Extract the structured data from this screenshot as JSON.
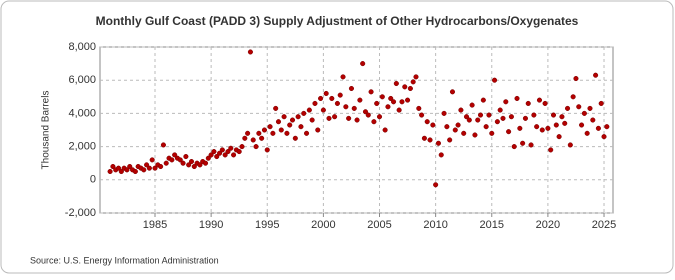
{
  "chart_data": {
    "type": "scatter",
    "title": "Monthly Gulf Coast (PADD 3) Supply Adjustment of Other Hydrocarbons/Oxygenates",
    "y_label": "Thousand Barrels",
    "source": "Source: U.S. Energy Information Administration",
    "xlim": [
      1980.1,
      2025.8
    ],
    "xticks": [
      1985,
      1990,
      1995,
      2000,
      2005,
      2010,
      2015,
      2020,
      2025
    ],
    "ylim": [
      -2000,
      8000
    ],
    "yticks": [
      {
        "value": -2000,
        "label": "-2,000"
      },
      0,
      {
        "value": 2000,
        "label": "2,000"
      },
      {
        "value": 4000,
        "label": "4,000"
      },
      {
        "value": 6000,
        "label": "6,000"
      },
      {
        "value": 8000,
        "label": "8,000"
      }
    ],
    "grid": true,
    "series": [
      {
        "color": "#b30000",
        "x": [
          1981,
          1981.25,
          1981.5,
          1981.75,
          1982,
          1982.25,
          1982.5,
          1982.75,
          1983,
          1983.25,
          1983.5,
          1983.75,
          1984,
          1984.25,
          1984.5,
          1984.75,
          1985,
          1985.25,
          1985.5,
          1985.75,
          1986,
          1986.25,
          1986.5,
          1986.75,
          1987,
          1987.25,
          1987.5,
          1987.75,
          1988,
          1988.25,
          1988.5,
          1988.75,
          1989,
          1989.25,
          1989.5,
          1989.75,
          1990,
          1990.25,
          1990.5,
          1990.75,
          1991,
          1991.25,
          1991.5,
          1991.75,
          1992,
          1992.25,
          1992.5,
          1992.75,
          1993,
          1993.25,
          1993.5,
          1993.75,
          1994,
          1994.25,
          1994.5,
          1994.75,
          1995,
          1995.25,
          1995.5,
          1995.75,
          1996,
          1996.25,
          1996.5,
          1996.75,
          1997,
          1997.25,
          1997.5,
          1997.75,
          1998,
          1998.25,
          1998.5,
          1998.75,
          1999,
          1999.25,
          1999.5,
          1999.75,
          2000,
          2000.25,
          2000.5,
          2000.75,
          2001,
          2001.25,
          2001.5,
          2001.75,
          2002,
          2002.25,
          2002.5,
          2002.75,
          2003,
          2003.25,
          2003.5,
          2003.75,
          2004,
          2004.25,
          2004.5,
          2004.75,
          2005,
          2005.25,
          2005.5,
          2005.75,
          2006,
          2006.25,
          2006.5,
          2006.75,
          2007,
          2007.25,
          2007.5,
          2007.75,
          2008,
          2008.25,
          2008.5,
          2008.75,
          2009,
          2009.25,
          2009.5,
          2009.75,
          2010,
          2010.25,
          2010.5,
          2010.75,
          2011,
          2011.25,
          2011.5,
          2011.75,
          2012,
          2012.25,
          2012.5,
          2012.75,
          2013,
          2013.25,
          2013.5,
          2013.75,
          2014,
          2014.25,
          2014.5,
          2014.75,
          2015,
          2015.25,
          2015.5,
          2015.75,
          2016,
          2016.25,
          2016.5,
          2016.75,
          2017,
          2017.25,
          2017.5,
          2017.75,
          2018,
          2018.25,
          2018.5,
          2018.75,
          2019,
          2019.25,
          2019.5,
          2019.75,
          2020,
          2020.25,
          2020.5,
          2020.75,
          2021,
          2021.25,
          2021.5,
          2021.75,
          2022,
          2022.25,
          2022.5,
          2022.75,
          2023,
          2023.25,
          2023.5,
          2023.75,
          2024,
          2024.25,
          2024.5,
          2024.75,
          2025,
          2025.25
        ],
        "values": [
          500,
          800,
          600,
          700,
          500,
          700,
          600,
          800,
          600,
          500,
          800,
          700,
          600,
          900,
          700,
          1200,
          700,
          900,
          800,
          2100,
          1000,
          1300,
          1200,
          1500,
          1300,
          1200,
          1000,
          1400,
          900,
          1100,
          800,
          1000,
          900,
          1100,
          1000,
          1300,
          1500,
          1700,
          1400,
          1600,
          1800,
          1500,
          1700,
          1900,
          1500,
          1800,
          1700,
          2000,
          2500,
          2800,
          7700,
          2400,
          2000,
          2800,
          2500,
          3000,
          1800,
          3200,
          2800,
          4300,
          3500,
          3000,
          3800,
          2800,
          3300,
          3600,
          2500,
          3800,
          3200,
          4000,
          2800,
          4200,
          3600,
          4600,
          3000,
          4900,
          4200,
          5200,
          3700,
          4900,
          3800,
          4600,
          5100,
          6200,
          4400,
          3700,
          5500,
          4300,
          3600,
          4800,
          7000,
          4100,
          3900,
          5300,
          3500,
          4600,
          3800,
          5000,
          3000,
          4400,
          4900,
          4700,
          5800,
          4200,
          4700,
          5600,
          4800,
          5500,
          5900,
          6200,
          4300,
          3900,
          2500,
          3500,
          2400,
          3300,
          -300,
          2200,
          1500,
          4000,
          3200,
          2400,
          5300,
          3000,
          3300,
          4200,
          2800,
          3800,
          3600,
          4500,
          2700,
          3600,
          3900,
          4800,
          3200,
          3900,
          2800,
          6000,
          3500,
          4200,
          3700,
          4700,
          2900,
          3800,
          2000,
          4900,
          3100,
          2200,
          3700,
          4600,
          2100,
          3900,
          3200,
          4800,
          3000,
          4600,
          3100,
          1800,
          3900,
          3300,
          2600,
          3800,
          3400,
          4300,
          2100,
          5000,
          6100,
          4400,
          3300,
          4000,
          2800,
          4300,
          3600,
          6300,
          3100,
          4600,
          2600,
          3200
        ]
      }
    ]
  }
}
